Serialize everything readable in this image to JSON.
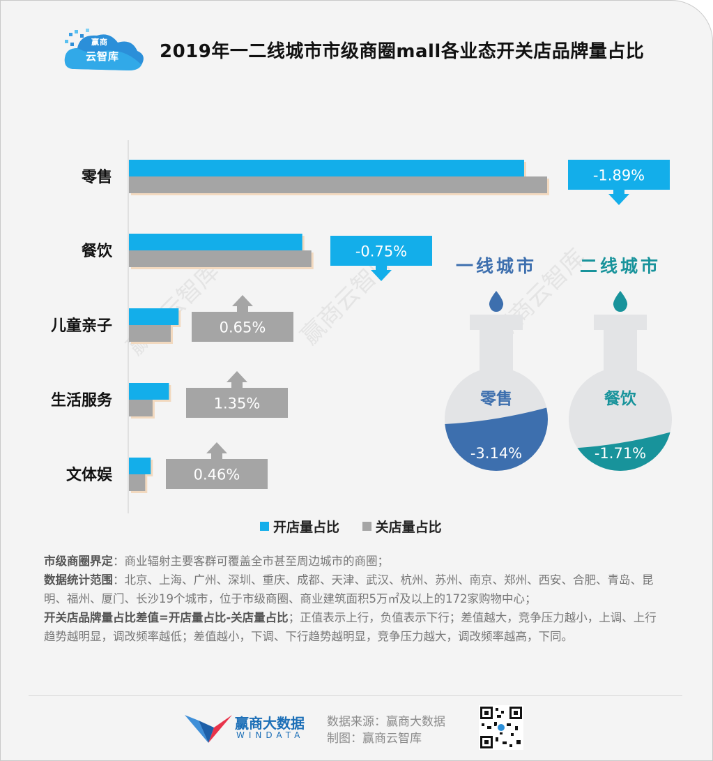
{
  "header": {
    "title": "2019年一二线城市市级商圈mall各业态开关店品牌量占比",
    "logo_line1": "赢商",
    "logo_line2": "云智库"
  },
  "watermark": "赢商云智库",
  "colors": {
    "open": "#13aeea",
    "close": "#a5a5a5",
    "tier1": "#3d6fae",
    "tier2": "#18939b",
    "flask": "#e3e4e6"
  },
  "chart_data": [
    {
      "type": "bar",
      "orientation": "horizontal",
      "categories": [
        "零售",
        "餐饮",
        "儿童亲子",
        "生活服务",
        "文体娱"
      ],
      "series": [
        {
          "name": "开店量占比",
          "values": [
            32.6,
            14.3,
            4.1,
            3.3,
            1.8
          ]
        },
        {
          "name": "关店量占比",
          "values": [
            34.5,
            15.05,
            3.45,
            1.95,
            1.34
          ]
        }
      ],
      "differences": [
        "-1.89%",
        "-0.75%",
        "0.65%",
        "1.35%",
        "0.46%"
      ],
      "difference_direction": [
        "down",
        "down",
        "up",
        "up",
        "up"
      ],
      "legend": "bottom",
      "grid": false
    },
    {
      "type": "flask",
      "items": [
        {
          "tier": "一线城市",
          "category": "零售",
          "value": -3.14,
          "label": "-3.14%"
        },
        {
          "tier": "二线城市",
          "category": "餐饮",
          "value": -1.71,
          "label": "-1.71%"
        }
      ]
    }
  ],
  "legend": {
    "open_label": "开店量占比",
    "close_label": "关店量占比"
  },
  "notes": [
    {
      "term": "市级商圈界定",
      "text": "：商业辐射主要客群可覆盖全市甚至周边城市的商圈；"
    },
    {
      "term": "数据统计范围",
      "text": "：北京、上海、广州、深圳、重庆、成都、天津、武汉、杭州、苏州、南京、郑州、西安、合肥、青岛、昆明、福州、厦门、长沙19个城市，位于市级商圈、商业建筑面积5万㎡及以上的172家购物中心；"
    },
    {
      "term": "开关店品牌量占比差值=开店量占比-关店量占比",
      "text": "；正值表示上行，负值表示下行；差值越大，竞争压力越小，上调、上行趋势越明显，调改频率越低；差值越小，下调、下行趋势越明显，竞争压力越大，调改频率越高，下同。"
    }
  ],
  "footer": {
    "brand_cn": "赢商大数据",
    "brand_en": "WINDATA",
    "source": "数据来源：赢商大数据",
    "made_by": "制图：赢商云智库"
  }
}
